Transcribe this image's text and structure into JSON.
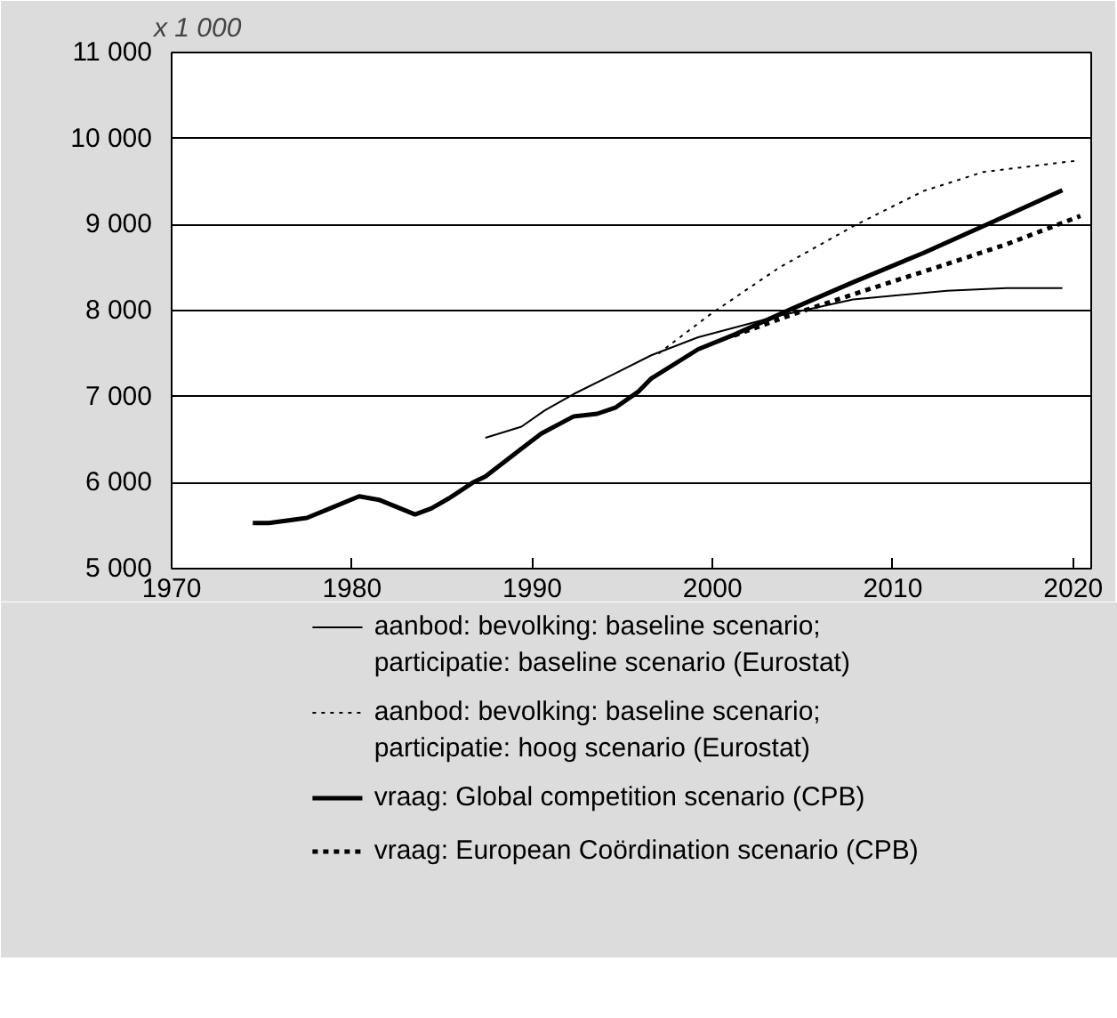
{
  "chart_data": {
    "type": "line",
    "ylabel": "x 1 000",
    "xlim": [
      1970,
      2021
    ],
    "ylim": [
      5000,
      11000
    ],
    "xticks": [
      1970,
      1980,
      1990,
      2000,
      2010,
      2020
    ],
    "yticks": [
      {
        "value": 5000,
        "label": "5 000"
      },
      {
        "value": 6000,
        "label": "6 000"
      },
      {
        "value": 7000,
        "label": "7 000"
      },
      {
        "value": 8000,
        "label": "8 000"
      },
      {
        "value": 9000,
        "label": "9 000"
      },
      {
        "value": 10000,
        "label": "10 000"
      },
      {
        "value": 11000,
        "label": "11 000"
      }
    ],
    "grid": "y",
    "legend": "bottom",
    "series": [
      {
        "name": "aanbod: bevolking: baseline scenario;\nparticipatie: baseline scenario (Eurostat)",
        "color": "#000000",
        "line_style": "solid",
        "x": [
          1987.4,
          1989.4,
          1990.7,
          1992.3,
          1994.5,
          1996.6,
          1999.2,
          2003.7,
          2007.8,
          2013.0,
          2016.3,
          2019.4
        ],
        "values": [
          6520,
          6650,
          6840,
          7030,
          7260,
          7480,
          7690,
          7940,
          8130,
          8230,
          8260,
          8260
        ]
      },
      {
        "name": "aanbod: bevolking: baseline scenario;\nparticipatie: hoog scenario (Eurostat)",
        "color": "#000000",
        "line_style": "dotted",
        "x": [
          1997.0,
          1999.9,
          2003.7,
          2007.8,
          2011.7,
          2015.0,
          2020.1
        ],
        "values": [
          7500,
          7960,
          8500,
          8980,
          9390,
          9610,
          9740
        ]
      },
      {
        "name": "vraag: Global competition scenario (CPB)",
        "color": "#000000",
        "line_style": "solid",
        "x": [
          1974.5,
          1975.4,
          1977.5,
          1978.9,
          1980.4,
          1981.5,
          1983.5,
          1984.4,
          1985.4,
          1986.7,
          1987.4,
          1989.0,
          1990.5,
          1992.3,
          1993.6,
          1994.6,
          1995.9,
          1996.6,
          1999.2,
          2001.2,
          2004.5,
          2007.8,
          2011.7,
          2015.0,
          2019.4
        ],
        "values": [
          5530,
          5530,
          5590,
          5710,
          5840,
          5800,
          5630,
          5700,
          5820,
          6000,
          6070,
          6330,
          6570,
          6770,
          6800,
          6870,
          7060,
          7210,
          7550,
          7720,
          8030,
          8330,
          8670,
          8980,
          9400
        ]
      },
      {
        "name": "vraag: European Coördination scenario (CPB)",
        "color": "#000000",
        "line_style": "dotted",
        "x": [
          2001.2,
          2004.5,
          2008.4,
          2012.4,
          2016.3,
          2020.4
        ],
        "values": [
          7710,
          7960,
          8230,
          8500,
          8770,
          9100
        ]
      }
    ]
  }
}
